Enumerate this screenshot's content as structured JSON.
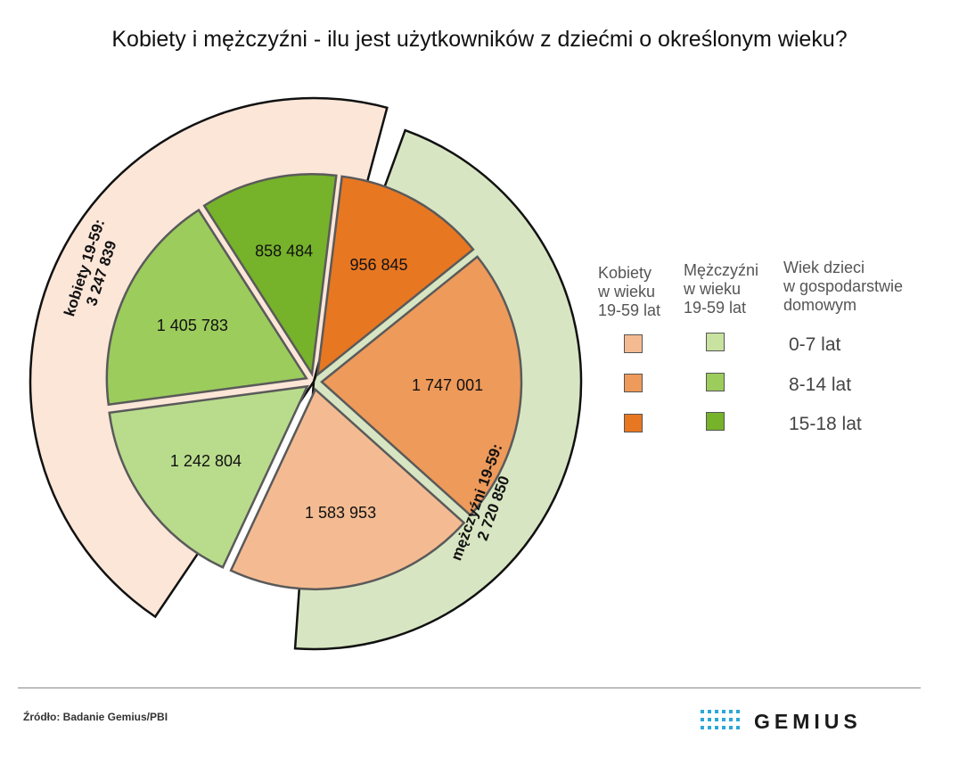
{
  "title": "Kobiety i mężczyźni - ilu jest użytkowników z dziećmi o określonym wieku?",
  "chart_data": {
    "type": "pie",
    "title": "Kobiety i mężczyźni - ilu jest użytkowników z dziećmi o określonym wieku?",
    "groups": [
      {
        "label": "kobiety 19-59:",
        "total": "3 247 839",
        "color": "#fce6d8"
      },
      {
        "label": "mężczyźni 19-59:",
        "total": "2 720 850",
        "color": "#d8e5c2"
      }
    ],
    "slices": [
      {
        "group": "kobiety",
        "age": "15-18 lat",
        "value": 956845,
        "label": "956 845",
        "color": "#e87722"
      },
      {
        "group": "kobiety",
        "age": "8-14 lat",
        "value": 1747001,
        "label": "1 747 001",
        "color": "#ee9a5a"
      },
      {
        "group": "kobiety",
        "age": "0-7 lat",
        "value": 1583953,
        "label": "1 583 953",
        "color": "#f4bb92"
      },
      {
        "group": "mężczyźni",
        "age": "0-7 lat",
        "value": 1242804,
        "label": "1 242 804",
        "color": "#b9dc8c"
      },
      {
        "group": "mężczyźni",
        "age": "8-14 lat",
        "value": 1405783,
        "label": "1 405 783",
        "color": "#9ccc5c"
      },
      {
        "group": "mężczyźni",
        "age": "15-18 lat",
        "value": 858484,
        "label": "858 484",
        "color": "#76b22a"
      }
    ]
  },
  "legend": {
    "col_women": "Kobiety\nw wieku\n19-59 lat",
    "col_men": "Mężczyźni\nw wieku\n19-59 lat",
    "col_age": "Wiek dzieci\nw gospodarstwie\ndomowym",
    "rows": [
      {
        "age": "0-7 lat",
        "women_color": "#f4bb92",
        "men_color": "#c8e29f"
      },
      {
        "age": "8-14 lat",
        "women_color": "#ee9a5a",
        "men_color": "#9ccc5c"
      },
      {
        "age": "15-18 lat",
        "women_color": "#e87722",
        "men_color": "#76b22a"
      }
    ]
  },
  "footer": {
    "source": "Źródło: Badanie Gemius/PBI",
    "logo": "GEMIUS"
  }
}
